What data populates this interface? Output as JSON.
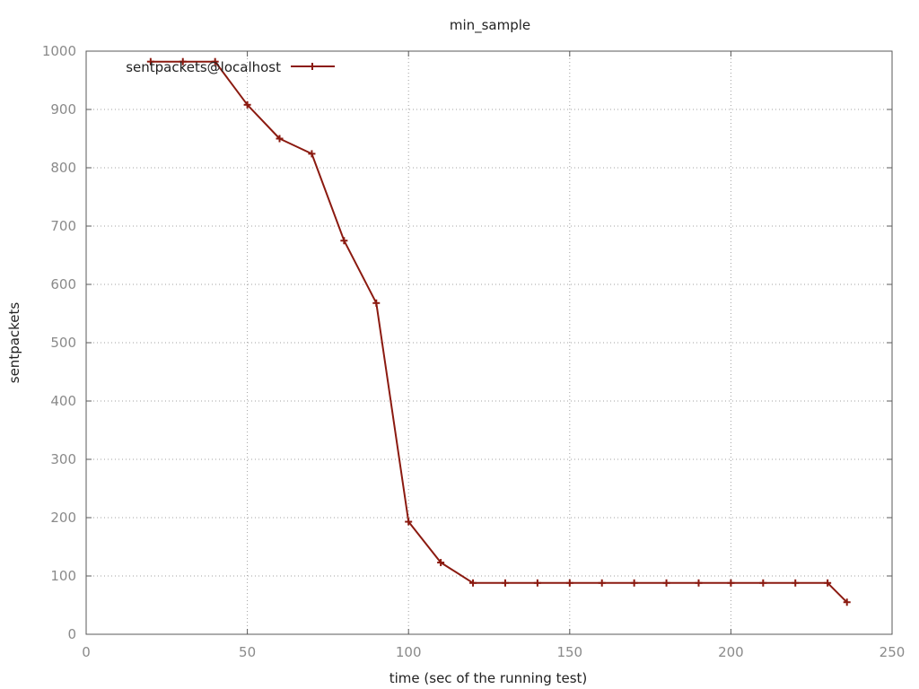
{
  "chart_data": {
    "type": "line",
    "title": "min_sample",
    "xlabel": "time (sec of the running test)",
    "ylabel": "sentpackets",
    "xlim": [
      0,
      250
    ],
    "ylim": [
      0,
      1000
    ],
    "xticks": [
      0,
      50,
      100,
      150,
      200,
      250
    ],
    "yticks": [
      0,
      100,
      200,
      300,
      400,
      500,
      600,
      700,
      800,
      900,
      1000
    ],
    "xtick_labels": [
      "0",
      "50",
      "100",
      "150",
      "200",
      "250"
    ],
    "ytick_labels": [
      "0",
      "100",
      "200",
      "300",
      "400",
      "500",
      "600",
      "700",
      "800",
      "900",
      "1000"
    ],
    "grid": true,
    "legend_position": "top-left",
    "series": [
      {
        "name": "sentpackets@localhost",
        "color": "#8b1a10",
        "marker": "plus",
        "x": [
          20,
          30,
          40,
          50,
          60,
          70,
          80,
          90,
          100,
          110,
          120,
          130,
          140,
          150,
          160,
          170,
          180,
          190,
          200,
          210,
          220,
          230,
          236
        ],
        "y": [
          982,
          982,
          982,
          908,
          850,
          824,
          675,
          568,
          193,
          123,
          88,
          88,
          88,
          88,
          88,
          88,
          88,
          88,
          88,
          88,
          88,
          88,
          55
        ]
      }
    ]
  }
}
